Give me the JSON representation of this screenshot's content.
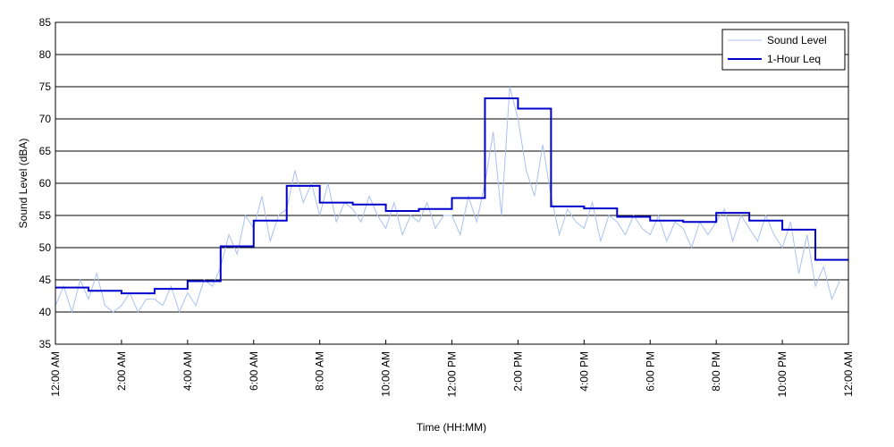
{
  "chart_data": {
    "type": "line",
    "xlabel": "Time (HH:MM)",
    "ylabel": "Sound Level (dBA)",
    "xlim": [
      0,
      24
    ],
    "xticks": [
      {
        "value": 0,
        "label": "12:00 AM"
      },
      {
        "value": 2,
        "label": "2:00 AM"
      },
      {
        "value": 4,
        "label": "4:00 AM"
      },
      {
        "value": 6,
        "label": "6:00 AM"
      },
      {
        "value": 8,
        "label": "8:00 AM"
      },
      {
        "value": 10,
        "label": "10:00 AM"
      },
      {
        "value": 12,
        "label": "12:00 PM"
      },
      {
        "value": 14,
        "label": "2:00 PM"
      },
      {
        "value": 16,
        "label": "4:00 PM"
      },
      {
        "value": 18,
        "label": "6:00 PM"
      },
      {
        "value": 20,
        "label": "8:00 PM"
      },
      {
        "value": 22,
        "label": "10:00 PM"
      },
      {
        "value": 24,
        "label": "12:00 AM"
      }
    ],
    "ylim": [
      35,
      85
    ],
    "yticks": [
      35,
      40,
      45,
      50,
      55,
      60,
      65,
      70,
      75,
      80,
      85
    ],
    "grid": true,
    "legend": "upper right",
    "series": [
      {
        "name": "Sound Level",
        "color": "#a9c1f2",
        "style": "line",
        "x": [
          0,
          0.25,
          0.5,
          0.75,
          1,
          1.25,
          1.5,
          1.75,
          2,
          2.25,
          2.5,
          2.75,
          3,
          3.25,
          3.5,
          3.75,
          4,
          4.25,
          4.5,
          4.75,
          5,
          5.25,
          5.5,
          5.75,
          6,
          6.25,
          6.5,
          6.75,
          7,
          7.25,
          7.5,
          7.75,
          8,
          8.25,
          8.5,
          8.75,
          9,
          9.25,
          9.5,
          9.75,
          10,
          10.25,
          10.5,
          10.75,
          11,
          11.25,
          11.5,
          11.75,
          12,
          12.25,
          12.5,
          12.75,
          13,
          13.25,
          13.5,
          13.75,
          14,
          14.25,
          14.5,
          14.75,
          15,
          15.25,
          15.5,
          15.75,
          16,
          16.25,
          16.5,
          16.75,
          17,
          17.25,
          17.5,
          17.75,
          18,
          18.25,
          18.5,
          18.75,
          19,
          19.25,
          19.5,
          19.75,
          20,
          20.25,
          20.5,
          20.75,
          21,
          21.25,
          21.5,
          21.75,
          22,
          22.25,
          22.5,
          22.75,
          23,
          23.25,
          23.5,
          23.75
        ],
        "values": [
          41,
          44,
          40,
          45,
          42,
          46,
          41,
          40,
          41,
          43,
          40,
          42,
          42,
          41,
          44,
          40,
          43,
          41,
          45,
          44,
          47,
          52,
          49,
          55,
          53,
          58,
          51,
          55,
          56,
          62,
          57,
          60,
          55,
          60,
          54,
          57,
          56,
          54,
          58,
          55,
          53,
          57,
          52,
          55,
          54,
          57,
          53,
          55,
          55,
          52,
          58,
          54,
          60,
          68,
          55,
          75,
          70,
          62,
          58,
          66,
          58,
          52,
          56,
          54,
          53,
          57,
          51,
          55,
          54,
          52,
          55,
          53,
          52,
          55,
          51,
          54,
          53,
          50,
          54,
          52,
          54,
          56,
          51,
          55,
          53,
          51,
          55,
          52,
          50,
          54,
          46,
          52,
          44,
          47,
          42,
          45
        ]
      },
      {
        "name": "1-Hour Leq",
        "color": "#0000cc",
        "style": "step",
        "x": [
          0,
          1,
          2,
          3,
          4,
          5,
          6,
          7,
          8,
          9,
          10,
          11,
          12,
          13,
          14,
          15,
          16,
          17,
          18,
          19,
          20,
          21,
          22,
          23
        ],
        "values": [
          43.8,
          43.3,
          42.9,
          43.6,
          44.8,
          50.2,
          54.2,
          59.6,
          57.0,
          56.7,
          55.7,
          56.0,
          57.7,
          73.2,
          71.6,
          56.4,
          56.1,
          54.8,
          54.2,
          54.0,
          55.4,
          54.2,
          52.8,
          48.1
        ]
      }
    ]
  }
}
